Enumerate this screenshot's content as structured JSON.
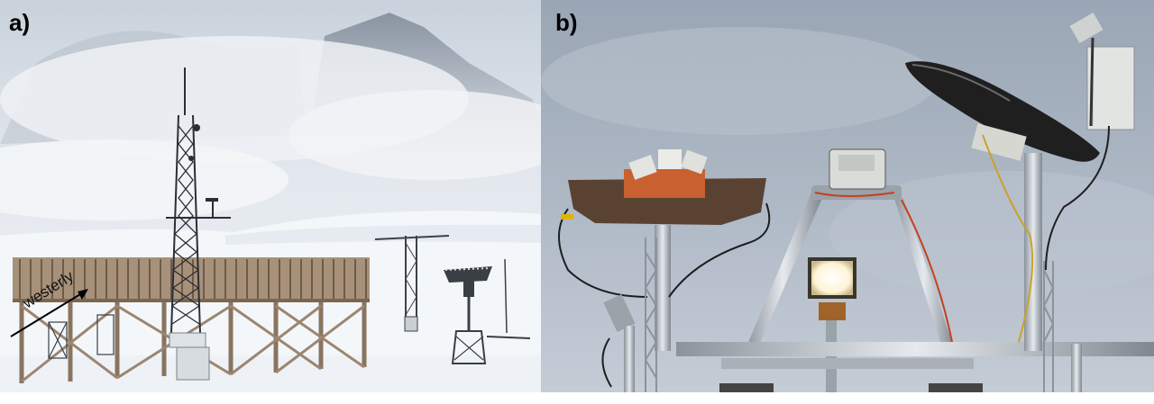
{
  "panels": [
    {
      "label": "a)",
      "annotation": "westerly"
    },
    {
      "label": "b)"
    }
  ]
}
